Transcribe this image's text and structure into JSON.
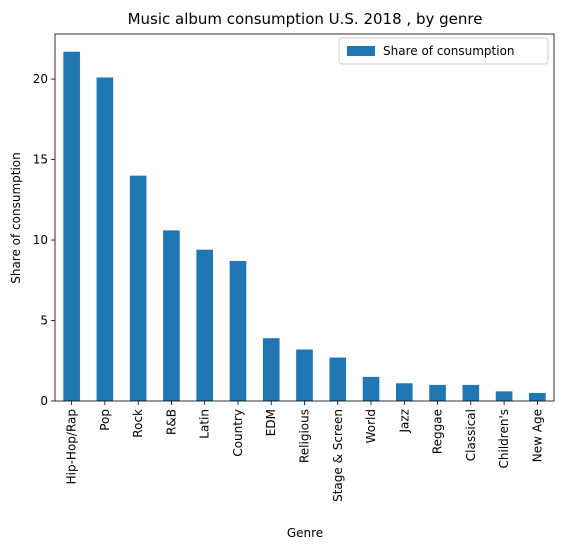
{
  "chart_data": {
    "type": "bar",
    "title": "Music album consumption U.S. 2018 , by genre",
    "xlabel": "Genre",
    "ylabel": "Share of consumption",
    "categories": [
      "Hip-Hop/Rap",
      "Pop",
      "Rock",
      "R&B",
      "Latin",
      "Country",
      "EDM",
      "Religious",
      "Stage & Screen",
      "World",
      "Jazz",
      "Reggae",
      "Classical",
      "Children's",
      "New Age"
    ],
    "series": [
      {
        "name": "Share of consumption",
        "color": "#1f77b4",
        "values": [
          21.7,
          20.1,
          14.0,
          10.6,
          9.4,
          8.7,
          3.9,
          3.2,
          2.7,
          1.5,
          1.1,
          1.0,
          1.0,
          0.6,
          0.5
        ]
      }
    ],
    "ylim": [
      0,
      22.8
    ],
    "yticks": [
      0,
      5,
      10,
      15,
      20
    ],
    "grid": false,
    "legend_position": "top-right"
  }
}
